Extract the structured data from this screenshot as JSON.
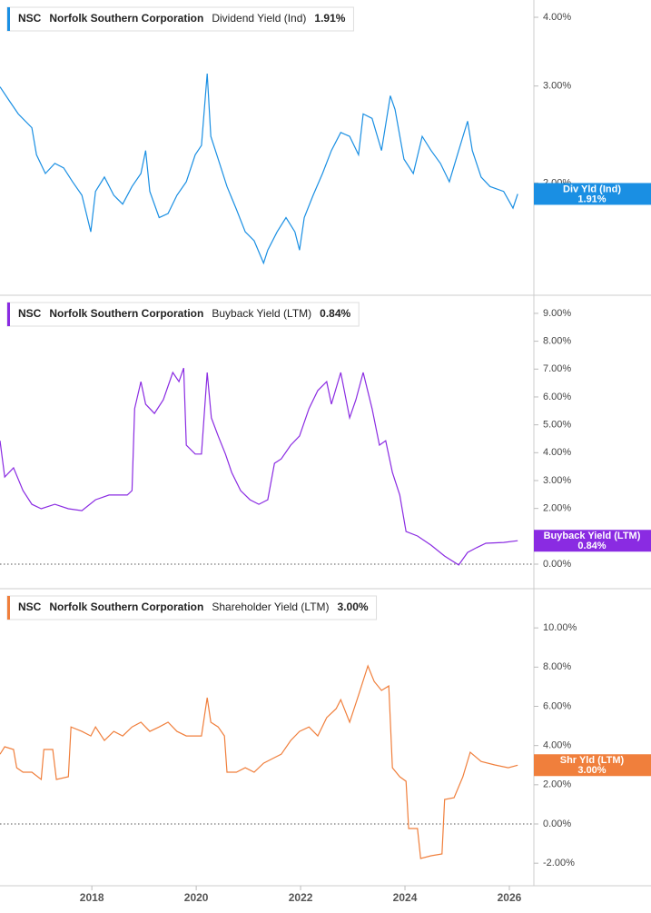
{
  "chart_data": [
    {
      "type": "line",
      "ticker": "NSC",
      "company": "Norfolk Southern Corporation",
      "log_scale": true,
      "xlim": [
        2016.24,
        2026.47
      ],
      "ylim": [
        1.25,
        4.3
      ],
      "yticks": [
        {
          "value": 2,
          "label": "2.00%"
        },
        {
          "value": 3,
          "label": "3.00%"
        },
        {
          "value": 4,
          "label": "4.00%"
        }
      ],
      "series": [
        {
          "name": "Dividend Yield (Ind)",
          "short_name": "Div Yld (Ind)",
          "last_value_label": "1.91%",
          "color": "#1a8fe3",
          "x": [
            2016.24,
            2016.42,
            2016.59,
            2016.85,
            2016.94,
            2017.11,
            2017.29,
            2017.46,
            2017.63,
            2017.81,
            2017.98,
            2018.07,
            2018.24,
            2018.42,
            2018.59,
            2018.77,
            2018.94,
            2019.03,
            2019.11,
            2019.29,
            2019.46,
            2019.63,
            2019.81,
            2019.98,
            2020.1,
            2020.21,
            2020.28,
            2020.42,
            2020.59,
            2020.77,
            2020.94,
            2021.11,
            2021.29,
            2021.37,
            2021.55,
            2021.72,
            2021.89,
            2021.98,
            2022.07,
            2022.24,
            2022.42,
            2022.59,
            2022.77,
            2022.94,
            2023.11,
            2023.2,
            2023.37,
            2023.55,
            2023.72,
            2023.81,
            2023.98,
            2024.16,
            2024.33,
            2024.5,
            2024.68,
            2024.85,
            2025.03,
            2025.2,
            2025.29,
            2025.46,
            2025.63,
            2025.89,
            2026.07,
            2026.16
          ],
          "values": [
            2.99,
            2.82,
            2.67,
            2.52,
            2.25,
            2.08,
            2.17,
            2.13,
            2.01,
            1.9,
            1.63,
            1.93,
            2.05,
            1.9,
            1.83,
            1.97,
            2.08,
            2.29,
            1.93,
            1.73,
            1.76,
            1.9,
            2.01,
            2.25,
            2.34,
            3.16,
            2.43,
            2.21,
            1.97,
            1.79,
            1.63,
            1.57,
            1.43,
            1.51,
            1.63,
            1.73,
            1.63,
            1.51,
            1.73,
            1.9,
            2.08,
            2.29,
            2.47,
            2.43,
            2.25,
            2.67,
            2.62,
            2.29,
            2.88,
            2.72,
            2.21,
            2.08,
            2.43,
            2.29,
            2.17,
            2.01,
            2.29,
            2.59,
            2.29,
            2.05,
            1.97,
            1.93,
            1.8,
            1.91
          ]
        }
      ]
    },
    {
      "type": "line",
      "ticker": "NSC",
      "company": "Norfolk Southern Corporation",
      "zero_line": true,
      "xlim": [
        2016.24,
        2026.47
      ],
      "ylim": [
        -0.88,
        9.65
      ],
      "yticks": [
        {
          "value": 0,
          "label": "0.00%"
        },
        {
          "value": 2,
          "label": "2.00%"
        },
        {
          "value": 3,
          "label": "3.00%"
        },
        {
          "value": 4,
          "label": "4.00%"
        },
        {
          "value": 5,
          "label": "5.00%"
        },
        {
          "value": 6,
          "label": "6.00%"
        },
        {
          "value": 7,
          "label": "7.00%"
        },
        {
          "value": 8,
          "label": "8.00%"
        },
        {
          "value": 9,
          "label": "9.00%"
        }
      ],
      "series": [
        {
          "name": "Buyback Yield (LTM)",
          "short_name": "Buyback Yield (LTM)",
          "last_value_label": "0.84%",
          "color": "#8a2be2",
          "x": [
            2016.24,
            2016.33,
            2016.5,
            2016.68,
            2016.85,
            2017.03,
            2017.29,
            2017.55,
            2017.81,
            2018.07,
            2018.33,
            2018.68,
            2018.77,
            2018.82,
            2018.94,
            2019.03,
            2019.2,
            2019.37,
            2019.55,
            2019.67,
            2019.76,
            2019.81,
            2019.98,
            2020.1,
            2020.21,
            2020.29,
            2020.42,
            2020.56,
            2020.68,
            2020.85,
            2021.03,
            2021.2,
            2021.37,
            2021.5,
            2021.63,
            2021.81,
            2021.98,
            2022.16,
            2022.33,
            2022.5,
            2022.59,
            2022.77,
            2022.94,
            2023.06,
            2023.2,
            2023.37,
            2023.51,
            2023.63,
            2023.76,
            2023.9,
            2024.02,
            2024.24,
            2024.5,
            2024.76,
            2025.03,
            2025.2,
            2025.37,
            2025.55,
            2025.89,
            2026.16
          ],
          "values": [
            4.43,
            3.13,
            3.46,
            2.64,
            2.15,
            1.99,
            2.15,
            1.99,
            1.92,
            2.31,
            2.48,
            2.48,
            2.64,
            5.58,
            6.55,
            5.74,
            5.41,
            5.9,
            6.88,
            6.55,
            7.04,
            4.27,
            3.95,
            3.95,
            6.88,
            5.25,
            4.6,
            3.95,
            3.29,
            2.64,
            2.31,
            2.15,
            2.31,
            3.62,
            3.78,
            4.27,
            4.6,
            5.58,
            6.23,
            6.55,
            5.74,
            6.88,
            5.25,
            5.9,
            6.88,
            5.58,
            4.27,
            4.43,
            3.29,
            2.48,
            1.17,
            1.01,
            0.68,
            0.29,
            -0.03,
            0.42,
            0.59,
            0.75,
            0.78,
            0.84
          ]
        }
      ]
    },
    {
      "type": "line",
      "ticker": "NSC",
      "company": "Norfolk Southern Corporation",
      "zero_line": true,
      "xlim": [
        2016.24,
        2026.47
      ],
      "ylim": [
        -3.15,
        12
      ],
      "xticks": [
        2018,
        2020,
        2022,
        2024,
        2026
      ],
      "yticks": [
        {
          "value": -2,
          "label": "-2.00%"
        },
        {
          "value": 0,
          "label": "0.00%"
        },
        {
          "value": 2,
          "label": "2.00%"
        },
        {
          "value": 4,
          "label": "4.00%"
        },
        {
          "value": 6,
          "label": "6.00%"
        },
        {
          "value": 8,
          "label": "8.00%"
        },
        {
          "value": 10,
          "label": "10.00%"
        }
      ],
      "series": [
        {
          "name": "Shareholder Yield (LTM)",
          "short_name": "Shr Yld (LTM)",
          "last_value_label": "3.00%",
          "color": "#f07f3c",
          "x": [
            2016.24,
            2016.33,
            2016.5,
            2016.56,
            2016.68,
            2016.85,
            2017.03,
            2017.08,
            2017.25,
            2017.32,
            2017.55,
            2017.6,
            2017.81,
            2017.98,
            2018.07,
            2018.24,
            2018.42,
            2018.59,
            2018.77,
            2018.94,
            2019.11,
            2019.29,
            2019.46,
            2019.63,
            2019.81,
            2019.98,
            2020.1,
            2020.21,
            2020.28,
            2020.42,
            2020.54,
            2020.59,
            2020.77,
            2020.94,
            2021.11,
            2021.29,
            2021.46,
            2021.63,
            2021.81,
            2021.98,
            2022.16,
            2022.33,
            2022.5,
            2022.68,
            2022.77,
            2022.94,
            2023.11,
            2023.29,
            2023.41,
            2023.55,
            2023.69,
            2023.76,
            2023.9,
            2024.02,
            2024.07,
            2024.24,
            2024.3,
            2024.5,
            2024.71,
            2024.76,
            2024.94,
            2025.11,
            2025.25,
            2025.46,
            2025.72,
            2025.98,
            2026.16
          ],
          "values": [
            3.56,
            3.94,
            3.8,
            2.87,
            2.64,
            2.64,
            2.27,
            3.8,
            3.8,
            2.27,
            2.41,
            4.95,
            4.72,
            4.49,
            4.95,
            4.26,
            4.72,
            4.49,
            4.95,
            5.19,
            4.72,
            4.95,
            5.19,
            4.72,
            4.49,
            4.49,
            4.49,
            6.44,
            5.19,
            4.95,
            4.49,
            2.64,
            2.64,
            2.87,
            2.64,
            3.1,
            3.33,
            3.56,
            4.26,
            4.72,
            4.95,
            4.49,
            5.42,
            5.88,
            6.34,
            5.19,
            6.57,
            8.06,
            7.27,
            6.81,
            7.04,
            2.87,
            2.41,
            2.18,
            -0.23,
            -0.23,
            -1.76,
            -1.62,
            -1.53,
            1.25,
            1.34,
            2.41,
            3.66,
            3.19,
            3.01,
            2.87,
            3.0
          ]
        }
      ]
    }
  ]
}
